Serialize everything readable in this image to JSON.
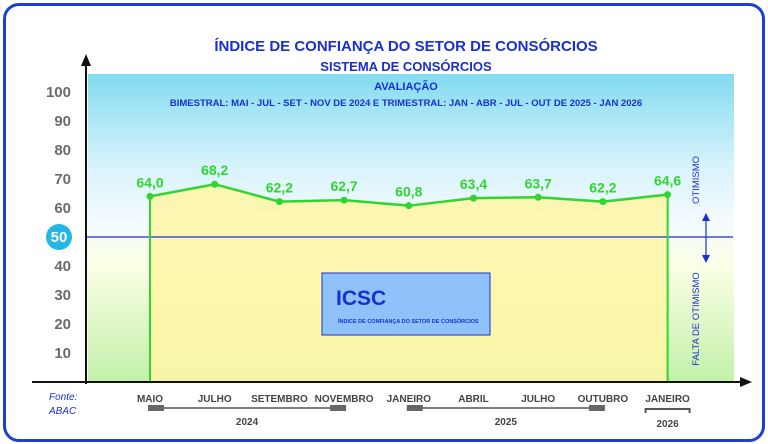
{
  "chart_data": {
    "type": "area",
    "title": "ÍNDICE DE CONFIANÇA DO SETOR DE CONSÓRCIOS",
    "subtitle": "SISTEMA DE CONSÓRCIOS",
    "subtitle2": "AVALIAÇÃO",
    "subtitle3": "BIMESTRAL: MAI - JUL - SET - NOV DE 2024 E TRIMESTRAL: JAN - ABR - JUL - OUT DE 2025 - JAN 2026",
    "categories": [
      "MAIO",
      "JULHO",
      "SETEMBRO",
      "NOVEMBRO",
      "JANEIRO",
      "ABRIL",
      "JULHO",
      "OUTUBRO",
      "JANEIRO"
    ],
    "values": [
      64.0,
      68.2,
      62.2,
      62.7,
      60.8,
      63.4,
      63.7,
      62.2,
      64.6
    ],
    "value_labels": [
      "64,0",
      "68,2",
      "62,2",
      "62,7",
      "60,8",
      "63,4",
      "63,7",
      "62,2",
      "64,6"
    ],
    "years": [
      {
        "label": "2024",
        "from": 0,
        "to": 3
      },
      {
        "label": "2025",
        "from": 4,
        "to": 7
      },
      {
        "label": "2026",
        "from": 8,
        "to": 8
      }
    ],
    "yticks": [
      10,
      20,
      30,
      40,
      50,
      60,
      70,
      80,
      90,
      100
    ],
    "ylim": [
      0,
      100
    ],
    "reference_value": 50,
    "reference_label": "50",
    "upper_label": "OTIMISMO",
    "lower_label": "FALTA DE OTIMISMO",
    "line_color": "#2fd62f",
    "accent_color": "#1a2fd0"
  },
  "legend_box": {
    "title": "ICSC",
    "subtitle": "ÍNDICE DE CONFIANÇA DO SETOR DE CONSÓRCIOS"
  },
  "source": {
    "line1": "Fonte:",
    "line2": "ABAC"
  }
}
